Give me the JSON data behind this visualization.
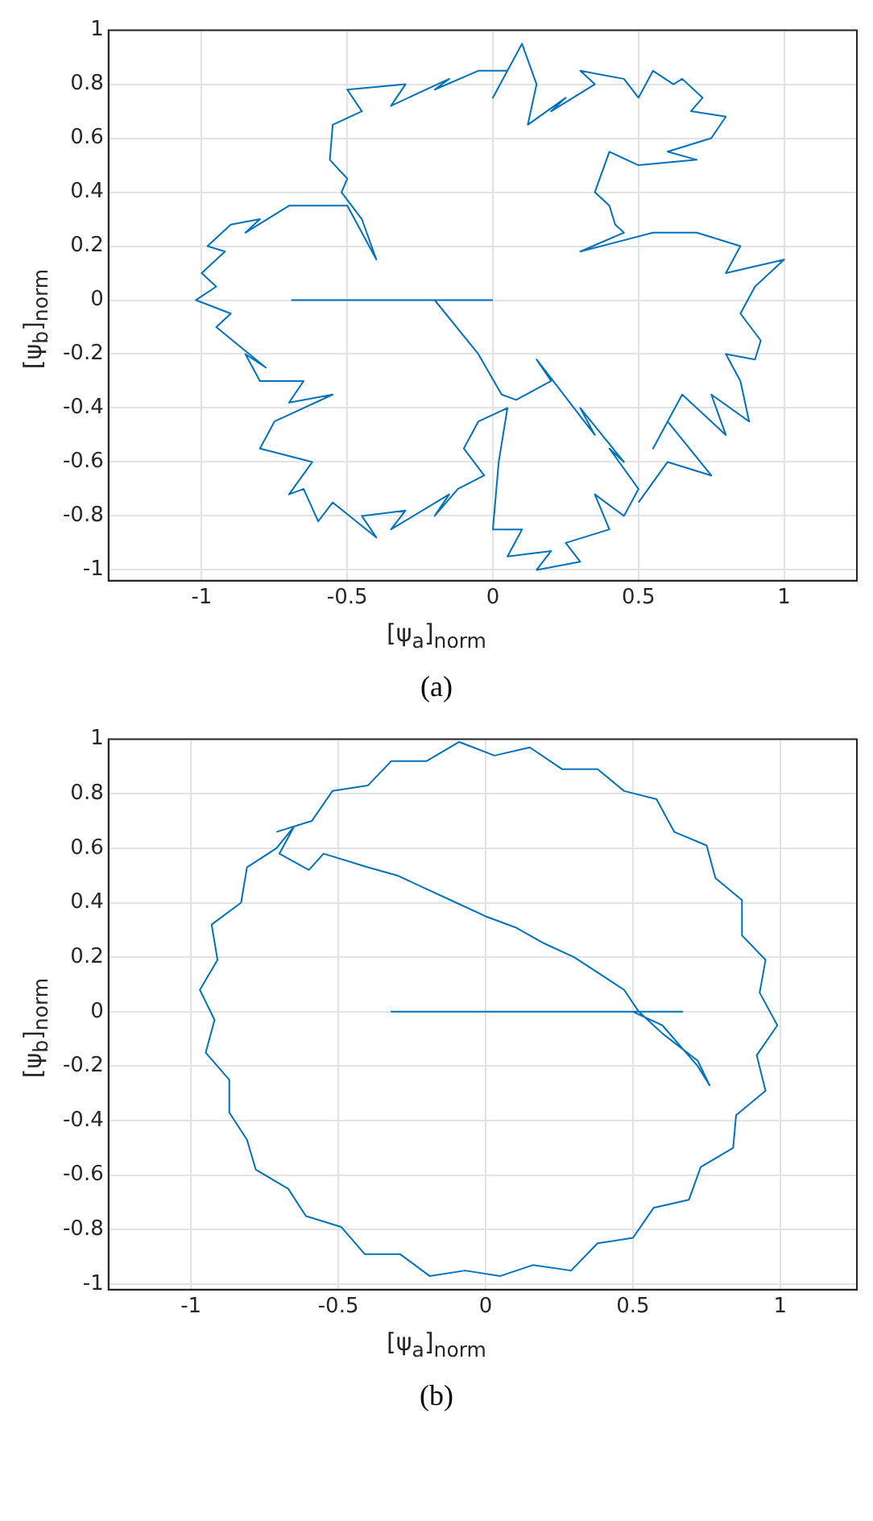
{
  "chart_data": [
    {
      "type": "line",
      "xlabel": "[ψ$_{a}$]$_{norm}$",
      "ylabel": "[ψ$_{b}$]$_{norm}$",
      "annotations": [
        "(a)"
      ],
      "grid": true,
      "xlim": [
        -1.32,
        1.25
      ],
      "ylim": [
        -1.04,
        1
      ],
      "xticks": [
        -1,
        -0.5,
        0,
        0.5,
        1
      ],
      "yticks": [
        -1,
        -0.8,
        -0.6,
        -0.4,
        -0.2,
        0,
        0.2,
        0.4,
        0.6,
        0.8,
        1
      ],
      "series": [
        {
          "color": "#0072bd",
          "x": [
            0,
            -0.69,
            -0.2,
            -0.05,
            0.03,
            0.08,
            0.2,
            0.15,
            0.35,
            0.3,
            0.45,
            0.4,
            0.5,
            0.45,
            0.35,
            0.4,
            0.25,
            0.3,
            0.15,
            0.2,
            0.05,
            0.1,
            0,
            0.02,
            0.05,
            -0.05,
            -0.1,
            -0.03,
            -0.12,
            -0.2,
            -0.15,
            -0.35,
            -0.3,
            -0.45,
            -0.4,
            -0.55,
            -0.6,
            -0.65,
            -0.7,
            -0.62,
            -0.8,
            -0.75,
            -0.55,
            -0.7,
            -0.65,
            -0.8,
            -0.85,
            -0.78,
            -0.95,
            -0.9,
            -1.02,
            -0.95,
            -1.0,
            -0.92,
            -0.98,
            -0.9,
            -0.8,
            -0.85,
            -0.7,
            -0.5,
            -0.45,
            -0.4,
            -0.45,
            -0.52,
            -0.5,
            -0.56,
            -0.55,
            -0.45,
            -0.5,
            -0.3,
            -0.35,
            -0.15,
            -0.2,
            -0.05,
            0.05,
            0,
            0.1,
            0.15,
            0.12,
            0.25,
            0.2,
            0.35,
            0.3,
            0.45,
            0.5,
            0.55,
            0.62,
            0.65,
            0.72,
            0.68,
            0.8,
            0.75,
            0.6,
            0.7,
            0.5,
            0.4,
            0.35,
            0.4,
            0.42,
            0.45,
            0.3,
            0.55,
            0.7,
            0.85,
            0.8,
            1.0,
            0.9,
            0.85,
            0.92,
            0.9,
            0.8,
            0.85,
            0.88,
            0.75,
            0.8,
            0.7,
            0.65,
            0.55,
            0.6,
            0.75,
            0.6,
            0.5
          ],
          "values": [
            0,
            0,
            0,
            -0.2,
            -0.35,
            -0.37,
            -0.3,
            -0.22,
            -0.5,
            -0.4,
            -0.6,
            -0.55,
            -0.7,
            -0.8,
            -0.72,
            -0.85,
            -0.9,
            -0.97,
            -1.0,
            -0.93,
            -0.95,
            -0.85,
            -0.85,
            -0.6,
            -0.4,
            -0.45,
            -0.55,
            -0.65,
            -0.7,
            -0.8,
            -0.72,
            -0.85,
            -0.78,
            -0.8,
            -0.88,
            -0.75,
            -0.82,
            -0.7,
            -0.72,
            -0.6,
            -0.55,
            -0.45,
            -0.35,
            -0.38,
            -0.3,
            -0.3,
            -0.2,
            -0.25,
            -0.1,
            -0.05,
            0,
            0.05,
            0.1,
            0.18,
            0.2,
            0.28,
            0.3,
            0.25,
            0.35,
            0.35,
            0.25,
            0.15,
            0.3,
            0.4,
            0.45,
            0.52,
            0.65,
            0.7,
            0.78,
            0.8,
            0.72,
            0.82,
            0.78,
            0.85,
            0.85,
            0.75,
            0.95,
            0.8,
            0.65,
            0.75,
            0.7,
            0.8,
            0.85,
            0.82,
            0.75,
            0.85,
            0.8,
            0.82,
            0.75,
            0.7,
            0.68,
            0.6,
            0.55,
            0.52,
            0.5,
            0.55,
            0.4,
            0.35,
            0.28,
            0.25,
            0.18,
            0.25,
            0.25,
            0.2,
            0.1,
            0.15,
            0.05,
            -0.05,
            -0.15,
            -0.22,
            -0.2,
            -0.3,
            -0.45,
            -0.35,
            -0.5,
            -0.4,
            -0.35,
            -0.55,
            -0.45,
            -0.65,
            -0.6,
            -0.75
          ]
        }
      ]
    },
    {
      "type": "line",
      "xlabel": "[ψ$_{a}$]$_{norm}$",
      "ylabel": "[ψ$_{b}$]$_{norm}$",
      "annotations": [
        "(b)"
      ],
      "grid": true,
      "xlim": [
        -1.28,
        1.26
      ],
      "ylim": [
        -1.02,
        1
      ],
      "xticks": [
        -1,
        -0.5,
        0,
        0.5,
        1
      ],
      "yticks": [
        -1,
        -0.8,
        -0.6,
        -0.4,
        -0.2,
        0,
        0.2,
        0.4,
        0.6,
        0.8,
        1
      ],
      "series": [
        {
          "color": "#0072bd",
          "x": [
            0.67,
            -0.32,
            0.5,
            0.6,
            0.68,
            0.72,
            0.76,
            0.72,
            0.6,
            0.52,
            0.47,
            0.4,
            0.3,
            0.2,
            0.1,
            0,
            -0.1,
            -0.2,
            -0.3,
            -0.4,
            -0.55,
            -0.6,
            -0.7,
            -0.65,
            -0.71,
            -0.81,
            -0.83,
            -0.93,
            -0.91,
            -0.97,
            -0.92,
            -0.95,
            -0.87,
            -0.87,
            -0.81,
            -0.78,
            -0.67,
            -0.61,
            -0.49,
            -0.41,
            -0.29,
            -0.19,
            -0.07,
            0.05,
            0.16,
            0.29,
            0.38,
            0.5,
            0.57,
            0.69,
            0.73,
            0.84,
            0.85,
            0.95,
            0.92,
            0.99,
            0.93,
            0.95,
            0.87,
            0.87,
            0.78,
            0.75,
            0.64,
            0.58,
            0.47,
            0.38,
            0.26,
            0.15,
            0.03,
            -0.09,
            -0.2,
            -0.32,
            -0.4,
            -0.52,
            -0.59,
            -0.71
          ],
          "values": [
            0,
            0,
            0,
            -0.05,
            -0.15,
            -0.2,
            -0.27,
            -0.18,
            -0.08,
            0,
            0.08,
            0.13,
            0.2,
            0.25,
            0.31,
            0.35,
            0.4,
            0.45,
            0.5,
            0.53,
            0.58,
            0.52,
            0.58,
            0.68,
            0.6,
            0.53,
            0.4,
            0.32,
            0.19,
            0.08,
            -0.03,
            -0.15,
            -0.25,
            -0.37,
            -0.47,
            -0.58,
            -0.65,
            -0.75,
            -0.79,
            -0.89,
            -0.89,
            -0.97,
            -0.95,
            -0.97,
            -0.93,
            -0.95,
            -0.85,
            -0.83,
            -0.72,
            -0.69,
            -0.57,
            -0.5,
            -0.38,
            -0.29,
            -0.16,
            -0.05,
            0.07,
            0.19,
            0.28,
            0.41,
            0.49,
            0.61,
            0.66,
            0.78,
            0.81,
            0.89,
            0.89,
            0.97,
            0.94,
            0.99,
            0.92,
            0.92,
            0.83,
            0.81,
            0.7,
            0.66
          ]
        }
      ]
    }
  ]
}
